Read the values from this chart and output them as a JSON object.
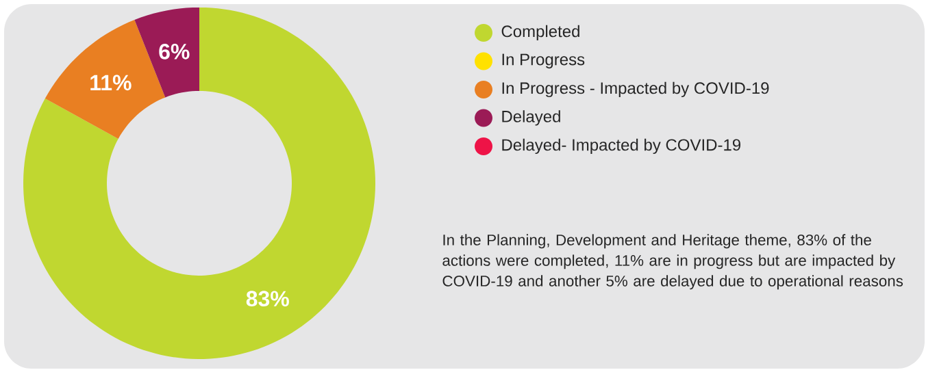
{
  "chart_data": {
    "type": "donut",
    "categories": [
      "Completed",
      "In Progress",
      "In Progress - Impacted by COVID-19",
      "Delayed",
      "Delayed- Impacted by COVID-19"
    ],
    "values": [
      83,
      0,
      11,
      6,
      0
    ],
    "colors": [
      "#c0d730",
      "#ffe100",
      "#e97f22",
      "#9b1b56",
      "#ee1347"
    ],
    "value_labels": [
      "83%",
      null,
      "11%",
      "6%",
      null
    ],
    "legend": "right",
    "annotations": [
      "In the Planning, Development and Heritage theme, 83% of the actions were completed, 11% are in progress but are impacted by COVID-19 and another 5% are delayed due to operational reasons"
    ]
  }
}
